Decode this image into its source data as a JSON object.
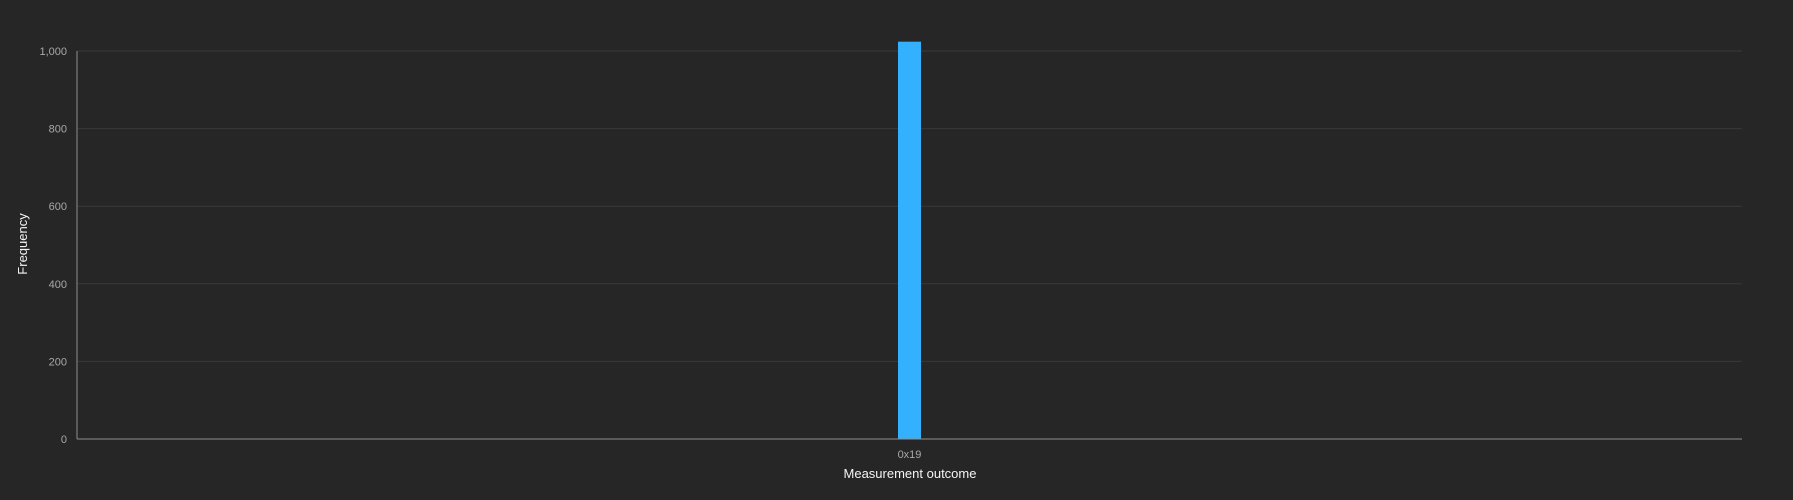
{
  "chart_data": {
    "type": "bar",
    "categories": [
      "0x19"
    ],
    "values": [
      1024
    ],
    "xlabel": "Measurement outcome",
    "ylabel": "Frequency",
    "ylim": [
      0,
      1000
    ],
    "yticks": [
      "0",
      "200",
      "400",
      "600",
      "800",
      "1,000"
    ],
    "ytick_values": [
      0,
      200,
      400,
      600,
      800,
      1000
    ],
    "grid": true,
    "bar_color": "#33b1ff",
    "background": "#262626"
  }
}
